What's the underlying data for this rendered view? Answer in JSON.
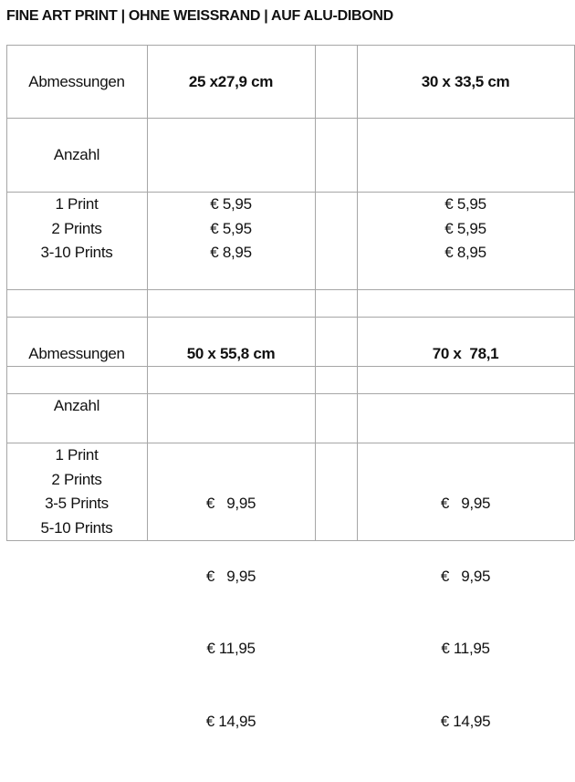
{
  "title": "FINE ART PRINT | OHNE WEISSRAND | AUF ALU-DIBOND",
  "section1": {
    "dimension_label": "Abmessungen",
    "sizes": [
      "25 x27,9 cm",
      "30 x 33,5 cm"
    ],
    "quantity_label": "Anzahl",
    "quantities": [
      "1 Print",
      "2 Prints",
      "3-10 Prints"
    ],
    "prices_col1": [
      "€ 5,95",
      "€ 5,95",
      "€ 8,95"
    ],
    "prices_col2": [
      "€ 5,95",
      "€ 5,95",
      "€ 8,95"
    ]
  },
  "section2": {
    "dimension_label": "Abmessungen",
    "sizes": [
      "50 x 55,8 cm",
      "70 x  78,1"
    ],
    "quantity_label": "Anzahl",
    "quantities": [
      "1 Print",
      "2 Prints",
      "3-5 Prints",
      "5-10 Prints"
    ],
    "prices_col1": [
      "€   9,95",
      "€   9,95",
      "€ 11,95",
      "€ 14,95"
    ],
    "prices_col2": [
      "€   9,95",
      "€   9,95",
      "€ 11,95",
      "€ 14,95"
    ]
  }
}
